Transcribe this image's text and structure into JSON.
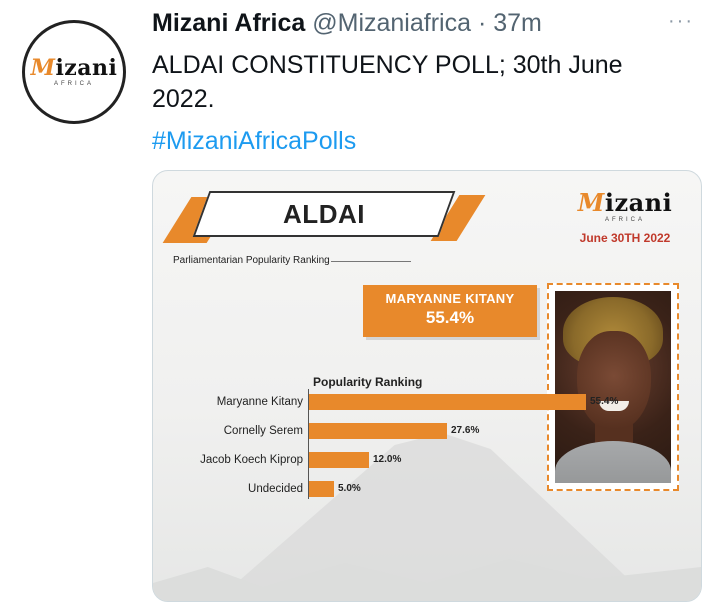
{
  "tweet": {
    "display_name": "Mizani Africa",
    "handle": "@Mizaniafrica",
    "separator": "·",
    "time": "37m",
    "more_glyph": "···",
    "text": "ALDAI CONSTITUENCY POLL; 30th June 2022.",
    "hashtag": "#MizaniAfricaPolls"
  },
  "avatar": {
    "logo_prefix": "M",
    "logo_rest": "izani",
    "logo_sub": "AFRICA"
  },
  "poster": {
    "title": "ALDAI",
    "subtitle": "Parliamentarian Popularity Ranking",
    "brand": {
      "logo_prefix": "M",
      "logo_rest": "izani",
      "logo_sub": "AFRICA",
      "date": "June 30TH 2022"
    },
    "winner": {
      "name": "MARYANNE KITANY",
      "percent": "55.4%"
    }
  },
  "chart_data": {
    "type": "bar",
    "orientation": "horizontal",
    "title": "Popularity Ranking",
    "categories": [
      "Maryanne Kitany",
      "Cornelly Serem",
      "Jacob Koech Kiprop",
      "Undecided"
    ],
    "values": [
      55.4,
      27.6,
      12.0,
      5.0
    ],
    "value_labels": [
      "55.4%",
      "27.6%",
      "12.0%",
      "5.0%"
    ],
    "xlim": [
      0,
      60
    ],
    "grid": false,
    "bar_color": "#e8892b"
  },
  "colors": {
    "accent": "#e8892b",
    "link": "#1d9bf0",
    "date_red": "#c0392b"
  }
}
